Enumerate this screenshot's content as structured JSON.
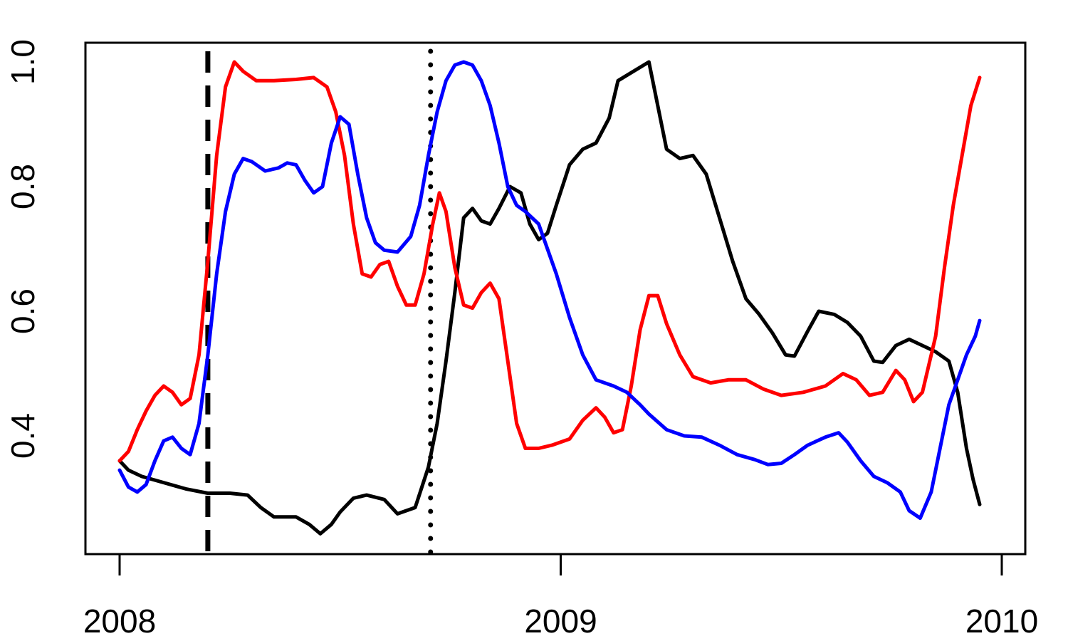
{
  "chart_data": {
    "type": "line",
    "title": "",
    "xlabel": "",
    "ylabel": "",
    "xlim": [
      2008.0,
      2010.0
    ],
    "ylim": [
      0.22,
      1.03
    ],
    "x_ticks": [
      {
        "value": 2008,
        "label": "2008"
      },
      {
        "value": 2009,
        "label": "2009"
      },
      {
        "value": 2010,
        "label": "2010"
      }
    ],
    "y_ticks": [
      {
        "value": 0.4,
        "label": "0.4"
      },
      {
        "value": 0.6,
        "label": "0.6"
      },
      {
        "value": 0.8,
        "label": "0.8"
      },
      {
        "value": 1.0,
        "label": "1.0"
      }
    ],
    "vertical_lines": [
      {
        "x": 2008.2,
        "style": "dashed",
        "color": "#000000"
      },
      {
        "x": 2008.705,
        "style": "dotted",
        "color": "#000000"
      }
    ],
    "grid": false,
    "legend": "none",
    "series": [
      {
        "color": "#000000",
        "points": [
          [
            2008.0,
            0.36
          ],
          [
            2008.02,
            0.345
          ],
          [
            2008.05,
            0.335
          ],
          [
            2008.1,
            0.325
          ],
          [
            2008.15,
            0.315
          ],
          [
            2008.2,
            0.308
          ],
          [
            2008.25,
            0.308
          ],
          [
            2008.29,
            0.305
          ],
          [
            2008.32,
            0.285
          ],
          [
            2008.35,
            0.27
          ],
          [
            2008.4,
            0.27
          ],
          [
            2008.43,
            0.258
          ],
          [
            2008.455,
            0.243
          ],
          [
            2008.48,
            0.258
          ],
          [
            2008.5,
            0.278
          ],
          [
            2008.53,
            0.3
          ],
          [
            2008.56,
            0.305
          ],
          [
            2008.6,
            0.298
          ],
          [
            2008.63,
            0.275
          ],
          [
            2008.67,
            0.285
          ],
          [
            2008.7,
            0.35
          ],
          [
            2008.72,
            0.42
          ],
          [
            2008.74,
            0.52
          ],
          [
            2008.76,
            0.63
          ],
          [
            2008.78,
            0.75
          ],
          [
            2008.8,
            0.765
          ],
          [
            2008.82,
            0.745
          ],
          [
            2008.84,
            0.74
          ],
          [
            2008.86,
            0.765
          ],
          [
            2008.885,
            0.8
          ],
          [
            2008.91,
            0.79
          ],
          [
            2008.93,
            0.74
          ],
          [
            2008.95,
            0.715
          ],
          [
            2008.97,
            0.725
          ],
          [
            2008.99,
            0.77
          ],
          [
            2009.02,
            0.835
          ],
          [
            2009.05,
            0.86
          ],
          [
            2009.08,
            0.87
          ],
          [
            2009.11,
            0.91
          ],
          [
            2009.13,
            0.97
          ],
          [
            2009.2,
            1.0
          ],
          [
            2009.22,
            0.93
          ],
          [
            2009.24,
            0.86
          ],
          [
            2009.27,
            0.845
          ],
          [
            2009.3,
            0.85
          ],
          [
            2009.33,
            0.82
          ],
          [
            2009.36,
            0.75
          ],
          [
            2009.39,
            0.68
          ],
          [
            2009.42,
            0.62
          ],
          [
            2009.45,
            0.595
          ],
          [
            2009.48,
            0.565
          ],
          [
            2009.51,
            0.53
          ],
          [
            2009.53,
            0.528
          ],
          [
            2009.56,
            0.568
          ],
          [
            2009.585,
            0.6
          ],
          [
            2009.62,
            0.595
          ],
          [
            2009.65,
            0.582
          ],
          [
            2009.68,
            0.56
          ],
          [
            2009.71,
            0.52
          ],
          [
            2009.73,
            0.518
          ],
          [
            2009.76,
            0.545
          ],
          [
            2009.79,
            0.555
          ],
          [
            2009.82,
            0.545
          ],
          [
            2009.85,
            0.535
          ],
          [
            2009.88,
            0.52
          ],
          [
            2009.9,
            0.47
          ],
          [
            2009.92,
            0.38
          ],
          [
            2009.935,
            0.33
          ],
          [
            2009.95,
            0.29
          ]
        ]
      },
      {
        "color": "#ff0000",
        "points": [
          [
            2008.0,
            0.36
          ],
          [
            2008.02,
            0.375
          ],
          [
            2008.04,
            0.41
          ],
          [
            2008.06,
            0.44
          ],
          [
            2008.08,
            0.465
          ],
          [
            2008.1,
            0.48
          ],
          [
            2008.12,
            0.47
          ],
          [
            2008.14,
            0.45
          ],
          [
            2008.16,
            0.46
          ],
          [
            2008.18,
            0.53
          ],
          [
            2008.2,
            0.68
          ],
          [
            2008.22,
            0.85
          ],
          [
            2008.24,
            0.96
          ],
          [
            2008.26,
            1.0
          ],
          [
            2008.28,
            0.985
          ],
          [
            2008.31,
            0.97
          ],
          [
            2008.35,
            0.97
          ],
          [
            2008.4,
            0.972
          ],
          [
            2008.44,
            0.975
          ],
          [
            2008.47,
            0.96
          ],
          [
            2008.49,
            0.92
          ],
          [
            2008.51,
            0.85
          ],
          [
            2008.53,
            0.74
          ],
          [
            2008.55,
            0.66
          ],
          [
            2008.57,
            0.655
          ],
          [
            2008.59,
            0.675
          ],
          [
            2008.61,
            0.68
          ],
          [
            2008.63,
            0.64
          ],
          [
            2008.65,
            0.61
          ],
          [
            2008.67,
            0.61
          ],
          [
            2008.69,
            0.66
          ],
          [
            2008.71,
            0.74
          ],
          [
            2008.725,
            0.79
          ],
          [
            2008.74,
            0.76
          ],
          [
            2008.76,
            0.67
          ],
          [
            2008.78,
            0.61
          ],
          [
            2008.8,
            0.605
          ],
          [
            2008.82,
            0.63
          ],
          [
            2008.84,
            0.645
          ],
          [
            2008.86,
            0.62
          ],
          [
            2008.88,
            0.52
          ],
          [
            2008.9,
            0.42
          ],
          [
            2008.92,
            0.38
          ],
          [
            2008.95,
            0.38
          ],
          [
            2008.98,
            0.385
          ],
          [
            2009.02,
            0.395
          ],
          [
            2009.05,
            0.425
          ],
          [
            2009.08,
            0.445
          ],
          [
            2009.1,
            0.43
          ],
          [
            2009.12,
            0.405
          ],
          [
            2009.14,
            0.41
          ],
          [
            2009.16,
            0.48
          ],
          [
            2009.18,
            0.57
          ],
          [
            2009.2,
            0.625
          ],
          [
            2009.22,
            0.625
          ],
          [
            2009.24,
            0.58
          ],
          [
            2009.27,
            0.53
          ],
          [
            2009.3,
            0.495
          ],
          [
            2009.34,
            0.485
          ],
          [
            2009.38,
            0.49
          ],
          [
            2009.42,
            0.49
          ],
          [
            2009.46,
            0.475
          ],
          [
            2009.5,
            0.465
          ],
          [
            2009.55,
            0.47
          ],
          [
            2009.6,
            0.48
          ],
          [
            2009.64,
            0.5
          ],
          [
            2009.67,
            0.49
          ],
          [
            2009.7,
            0.465
          ],
          [
            2009.73,
            0.47
          ],
          [
            2009.76,
            0.505
          ],
          [
            2009.78,
            0.49
          ],
          [
            2009.8,
            0.455
          ],
          [
            2009.82,
            0.47
          ],
          [
            2009.85,
            0.56
          ],
          [
            2009.87,
            0.67
          ],
          [
            2009.89,
            0.77
          ],
          [
            2009.91,
            0.85
          ],
          [
            2009.93,
            0.93
          ],
          [
            2009.95,
            0.975
          ]
        ]
      },
      {
        "color": "#0000ff",
        "points": [
          [
            2008.0,
            0.345
          ],
          [
            2008.02,
            0.318
          ],
          [
            2008.04,
            0.31
          ],
          [
            2008.06,
            0.322
          ],
          [
            2008.08,
            0.36
          ],
          [
            2008.1,
            0.392
          ],
          [
            2008.12,
            0.398
          ],
          [
            2008.14,
            0.38
          ],
          [
            2008.16,
            0.37
          ],
          [
            2008.18,
            0.42
          ],
          [
            2008.2,
            0.53
          ],
          [
            2008.22,
            0.66
          ],
          [
            2008.24,
            0.76
          ],
          [
            2008.26,
            0.82
          ],
          [
            2008.28,
            0.845
          ],
          [
            2008.3,
            0.84
          ],
          [
            2008.33,
            0.825
          ],
          [
            2008.36,
            0.83
          ],
          [
            2008.38,
            0.838
          ],
          [
            2008.4,
            0.835
          ],
          [
            2008.42,
            0.81
          ],
          [
            2008.44,
            0.79
          ],
          [
            2008.46,
            0.8
          ],
          [
            2008.48,
            0.87
          ],
          [
            2008.5,
            0.912
          ],
          [
            2008.52,
            0.9
          ],
          [
            2008.54,
            0.82
          ],
          [
            2008.56,
            0.75
          ],
          [
            2008.58,
            0.71
          ],
          [
            2008.6,
            0.698
          ],
          [
            2008.63,
            0.695
          ],
          [
            2008.66,
            0.72
          ],
          [
            2008.68,
            0.77
          ],
          [
            2008.7,
            0.85
          ],
          [
            2008.72,
            0.92
          ],
          [
            2008.74,
            0.97
          ],
          [
            2008.76,
            0.995
          ],
          [
            2008.78,
            1.0
          ],
          [
            2008.8,
            0.995
          ],
          [
            2008.82,
            0.97
          ],
          [
            2008.84,
            0.93
          ],
          [
            2008.86,
            0.87
          ],
          [
            2008.88,
            0.8
          ],
          [
            2008.9,
            0.77
          ],
          [
            2008.92,
            0.76
          ],
          [
            2008.95,
            0.74
          ],
          [
            2008.97,
            0.7
          ],
          [
            2008.99,
            0.66
          ],
          [
            2009.02,
            0.59
          ],
          [
            2009.05,
            0.53
          ],
          [
            2009.08,
            0.49
          ],
          [
            2009.12,
            0.48
          ],
          [
            2009.15,
            0.47
          ],
          [
            2009.18,
            0.45
          ],
          [
            2009.2,
            0.435
          ],
          [
            2009.24,
            0.41
          ],
          [
            2009.28,
            0.4
          ],
          [
            2009.32,
            0.398
          ],
          [
            2009.36,
            0.385
          ],
          [
            2009.4,
            0.37
          ],
          [
            2009.44,
            0.362
          ],
          [
            2009.47,
            0.354
          ],
          [
            2009.5,
            0.356
          ],
          [
            2009.53,
            0.37
          ],
          [
            2009.56,
            0.385
          ],
          [
            2009.6,
            0.398
          ],
          [
            2009.63,
            0.405
          ],
          [
            2009.65,
            0.39
          ],
          [
            2009.68,
            0.36
          ],
          [
            2009.71,
            0.335
          ],
          [
            2009.74,
            0.325
          ],
          [
            2009.77,
            0.31
          ],
          [
            2009.79,
            0.28
          ],
          [
            2009.815,
            0.268
          ],
          [
            2009.84,
            0.31
          ],
          [
            2009.86,
            0.38
          ],
          [
            2009.88,
            0.45
          ],
          [
            2009.9,
            0.49
          ],
          [
            2009.92,
            0.53
          ],
          [
            2009.94,
            0.56
          ],
          [
            2009.95,
            0.585
          ]
        ]
      }
    ]
  }
}
